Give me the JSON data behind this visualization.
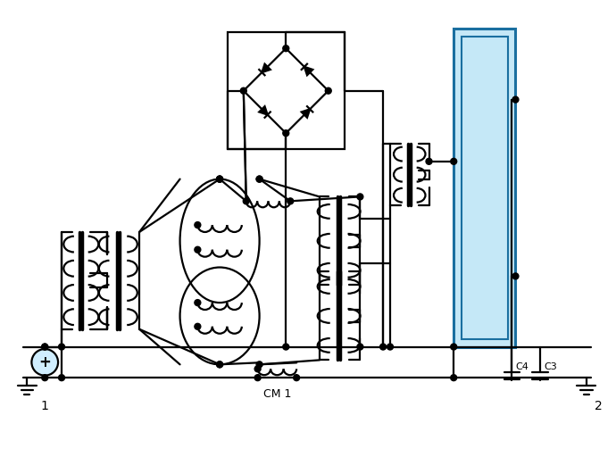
{
  "bg": "#ffffff",
  "lc": "#000000",
  "lw": 1.6,
  "blue_fill": "#c5e8f7",
  "blue_edge": "#1a6fa0",
  "fig_w": 6.9,
  "fig_h": 5.12,
  "dpi": 100,
  "gnd1": "1",
  "gnd2": "2",
  "cm1": "CM 1",
  "c4": "C4",
  "c3": "C3"
}
